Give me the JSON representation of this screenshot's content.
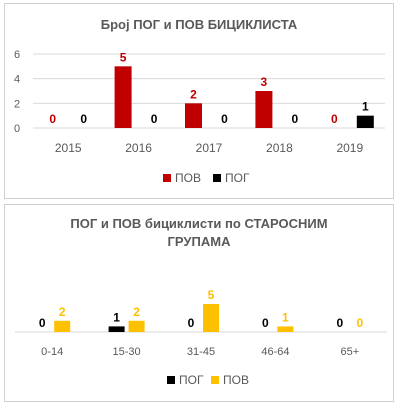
{
  "chart_data": [
    {
      "type": "bar",
      "title": "Број ПОГ и ПОВ БИЦИКЛИСТА",
      "categories": [
        "2015",
        "2016",
        "2017",
        "2018",
        "2019"
      ],
      "series": [
        {
          "name": "ПОВ",
          "color": "#c00000",
          "values": [
            0,
            5,
            2,
            3,
            0
          ]
        },
        {
          "name": "ПОГ",
          "color": "#000000",
          "values": [
            0,
            0,
            0,
            0,
            1
          ]
        }
      ],
      "yticks": [
        "0",
        "2",
        "4",
        "6"
      ],
      "ylim": [
        0,
        6
      ],
      "grid": true,
      "legend": "bottom"
    },
    {
      "type": "bar",
      "title_lines": [
        "ПОГ  и ПОВ бициклисти по СТАРОСНИМ",
        "ГРУПАМА"
      ],
      "categories": [
        "0-14",
        "15-30",
        "31-45",
        "46-64",
        "65+"
      ],
      "series": [
        {
          "name": "ПОГ",
          "color": "#000000",
          "values": [
            0,
            1,
            0,
            0,
            0
          ]
        },
        {
          "name": "ПОВ",
          "color": "#ffc000",
          "values": [
            2,
            2,
            5,
            1,
            0
          ]
        }
      ],
      "ylim": [
        0,
        5
      ],
      "grid": false,
      "legend": "bottom"
    }
  ]
}
